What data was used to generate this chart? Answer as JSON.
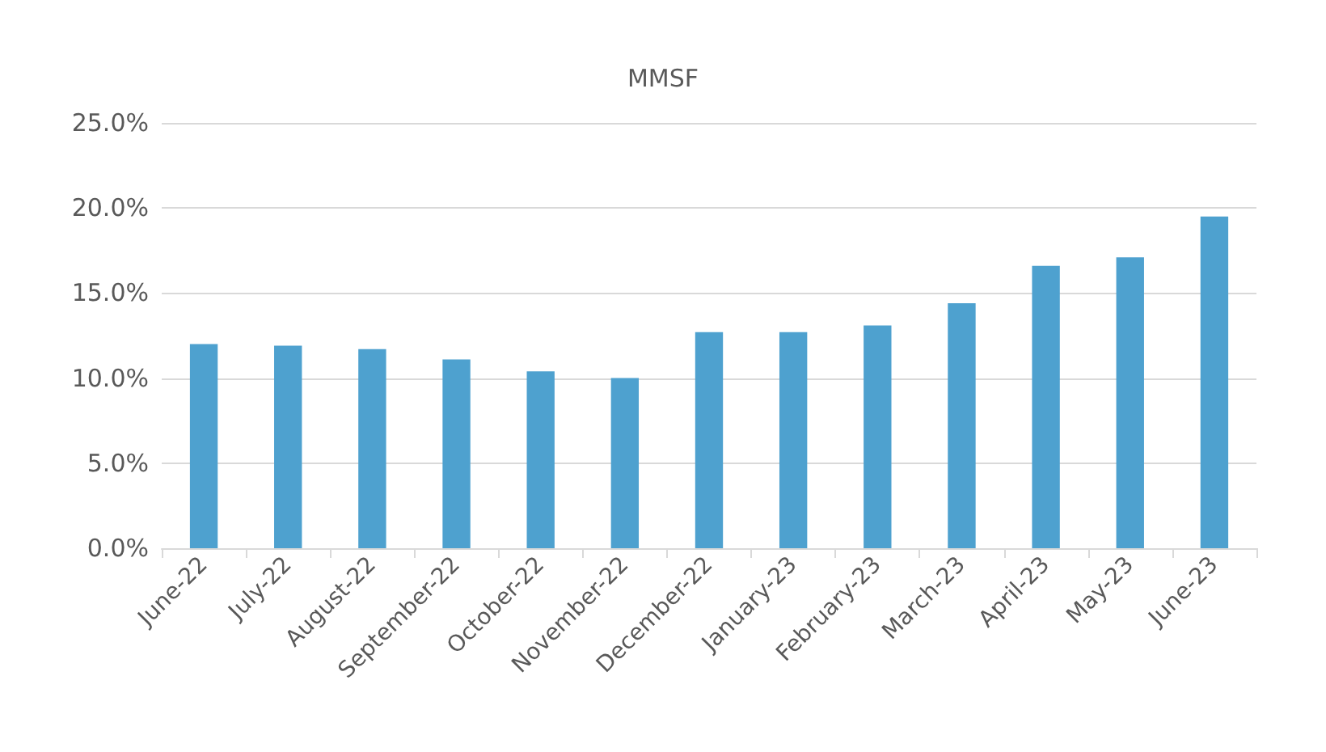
{
  "chart_data": {
    "type": "bar",
    "title": "MMSF",
    "categories": [
      "June-22",
      "July-22",
      "August-22",
      "September-22",
      "October-22",
      "November-22",
      "December-22",
      "January-23",
      "February-23",
      "March-23",
      "April-23",
      "May-23",
      "June-23"
    ],
    "values": [
      12.0,
      11.9,
      11.7,
      11.1,
      10.4,
      10.0,
      12.7,
      12.7,
      13.1,
      14.4,
      16.6,
      17.1,
      19.5
    ],
    "color": "#4ea1cf",
    "ylim": [
      0,
      25
    ],
    "yticks": [
      {
        "value": 0,
        "label": "0.0%"
      },
      {
        "value": 5,
        "label": "5.0%"
      },
      {
        "value": 10,
        "label": "10.0%"
      },
      {
        "value": 15,
        "label": "15.0%"
      },
      {
        "value": 20,
        "label": "20.0%"
      },
      {
        "value": 25,
        "label": "25.0%"
      }
    ],
    "grid": "y"
  }
}
